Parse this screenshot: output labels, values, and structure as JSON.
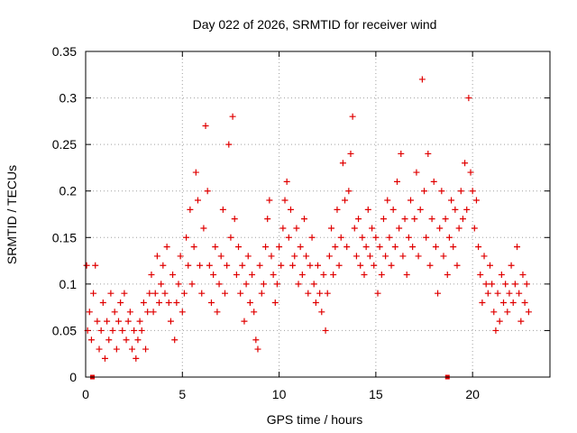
{
  "chart_data": {
    "type": "scatter",
    "title": "Day 022 of 2026, SRMTID for receiver wind",
    "xlabel": "GPS time / hours",
    "ylabel": "SRMTID / TECUs",
    "xlim": [
      0,
      24
    ],
    "ylim": [
      0,
      0.35
    ],
    "xticks": [
      0,
      5,
      10,
      15,
      20
    ],
    "xtick_labels": [
      "0",
      "5",
      "10",
      "15",
      "20"
    ],
    "yticks": [
      0,
      0.05,
      0.1,
      0.15,
      0.2,
      0.25,
      0.3,
      0.35
    ],
    "ytick_labels": [
      "0",
      "0.05",
      "0.1",
      "0.15",
      "0.2",
      "0.25",
      "0.3",
      "0.35"
    ],
    "grid": true,
    "marker": "plus",
    "color": "#e00000",
    "series": [
      {
        "name": "SRMTID",
        "marker": "plus",
        "points": [
          [
            0.05,
            0.12
          ],
          [
            0.1,
            0.05
          ],
          [
            0.2,
            0.07
          ],
          [
            0.3,
            0.04
          ],
          [
            0.4,
            0.09
          ],
          [
            0.5,
            0.12
          ],
          [
            0.6,
            0.06
          ],
          [
            0.7,
            0.03
          ],
          [
            0.8,
            0.05
          ],
          [
            0.9,
            0.08
          ],
          [
            1.0,
            0.02
          ],
          [
            1.1,
            0.06
          ],
          [
            1.2,
            0.04
          ],
          [
            1.3,
            0.09
          ],
          [
            1.4,
            0.05
          ],
          [
            1.5,
            0.07
          ],
          [
            1.6,
            0.03
          ],
          [
            1.7,
            0.06
          ],
          [
            1.8,
            0.08
          ],
          [
            1.9,
            0.05
          ],
          [
            2.0,
            0.09
          ],
          [
            2.1,
            0.04
          ],
          [
            2.2,
            0.06
          ],
          [
            2.3,
            0.07
          ],
          [
            2.4,
            0.03
          ],
          [
            2.5,
            0.05
          ],
          [
            2.6,
            0.02
          ],
          [
            2.7,
            0.04
          ],
          [
            2.8,
            0.06
          ],
          [
            2.9,
            0.05
          ],
          [
            3.0,
            0.08
          ],
          [
            3.1,
            0.03
          ],
          [
            3.2,
            0.07
          ],
          [
            3.3,
            0.09
          ],
          [
            3.4,
            0.11
          ],
          [
            3.5,
            0.07
          ],
          [
            3.6,
            0.09
          ],
          [
            3.7,
            0.13
          ],
          [
            3.8,
            0.08
          ],
          [
            3.9,
            0.1
          ],
          [
            4.0,
            0.12
          ],
          [
            4.1,
            0.09
          ],
          [
            4.2,
            0.14
          ],
          [
            4.3,
            0.08
          ],
          [
            4.4,
            0.06
          ],
          [
            4.5,
            0.11
          ],
          [
            4.6,
            0.04
          ],
          [
            4.7,
            0.08
          ],
          [
            4.8,
            0.1
          ],
          [
            4.9,
            0.13
          ],
          [
            5.0,
            0.07
          ],
          [
            5.1,
            0.09
          ],
          [
            5.2,
            0.15
          ],
          [
            5.3,
            0.12
          ],
          [
            5.4,
            0.18
          ],
          [
            5.5,
            0.1
          ],
          [
            5.6,
            0.14
          ],
          [
            5.7,
            0.22
          ],
          [
            5.8,
            0.19
          ],
          [
            5.9,
            0.12
          ],
          [
            6.0,
            0.09
          ],
          [
            6.1,
            0.16
          ],
          [
            6.2,
            0.27
          ],
          [
            6.3,
            0.2
          ],
          [
            6.4,
            0.12
          ],
          [
            6.5,
            0.08
          ],
          [
            6.6,
            0.11
          ],
          [
            6.7,
            0.14
          ],
          [
            6.8,
            0.07
          ],
          [
            6.9,
            0.1
          ],
          [
            7.0,
            0.13
          ],
          [
            7.1,
            0.18
          ],
          [
            7.2,
            0.09
          ],
          [
            7.3,
            0.12
          ],
          [
            7.4,
            0.25
          ],
          [
            7.5,
            0.15
          ],
          [
            7.6,
            0.28
          ],
          [
            7.7,
            0.17
          ],
          [
            7.8,
            0.11
          ],
          [
            7.9,
            0.14
          ],
          [
            8.0,
            0.09
          ],
          [
            8.1,
            0.12
          ],
          [
            8.2,
            0.06
          ],
          [
            8.3,
            0.1
          ],
          [
            8.4,
            0.13
          ],
          [
            8.5,
            0.08
          ],
          [
            8.6,
            0.11
          ],
          [
            8.7,
            0.07
          ],
          [
            8.8,
            0.04
          ],
          [
            8.9,
            0.03
          ],
          [
            9.0,
            0.12
          ],
          [
            9.1,
            0.09
          ],
          [
            9.2,
            0.1
          ],
          [
            9.3,
            0.14
          ],
          [
            9.4,
            0.17
          ],
          [
            9.5,
            0.19
          ],
          [
            9.6,
            0.13
          ],
          [
            9.7,
            0.11
          ],
          [
            9.8,
            0.08
          ],
          [
            9.9,
            0.1
          ],
          [
            10.0,
            0.14
          ],
          [
            10.1,
            0.12
          ],
          [
            10.2,
            0.16
          ],
          [
            10.3,
            0.19
          ],
          [
            10.4,
            0.21
          ],
          [
            10.5,
            0.15
          ],
          [
            10.6,
            0.18
          ],
          [
            10.7,
            0.12
          ],
          [
            10.8,
            0.13
          ],
          [
            10.9,
            0.16
          ],
          [
            11.0,
            0.1
          ],
          [
            11.1,
            0.14
          ],
          [
            11.2,
            0.11
          ],
          [
            11.3,
            0.17
          ],
          [
            11.4,
            0.13
          ],
          [
            11.5,
            0.09
          ],
          [
            11.6,
            0.12
          ],
          [
            11.7,
            0.15
          ],
          [
            11.8,
            0.1
          ],
          [
            11.9,
            0.08
          ],
          [
            12.0,
            0.12
          ],
          [
            12.1,
            0.09
          ],
          [
            12.2,
            0.07
          ],
          [
            12.3,
            0.11
          ],
          [
            12.4,
            0.05
          ],
          [
            12.5,
            0.09
          ],
          [
            12.6,
            0.13
          ],
          [
            12.7,
            0.16
          ],
          [
            12.8,
            0.11
          ],
          [
            12.9,
            0.14
          ],
          [
            13.0,
            0.18
          ],
          [
            13.1,
            0.12
          ],
          [
            13.2,
            0.15
          ],
          [
            13.3,
            0.23
          ],
          [
            13.4,
            0.19
          ],
          [
            13.5,
            0.14
          ],
          [
            13.6,
            0.2
          ],
          [
            13.7,
            0.24
          ],
          [
            13.8,
            0.28
          ],
          [
            13.9,
            0.16
          ],
          [
            14.0,
            0.13
          ],
          [
            14.1,
            0.17
          ],
          [
            14.2,
            0.12
          ],
          [
            14.3,
            0.15
          ],
          [
            14.4,
            0.11
          ],
          [
            14.5,
            0.14
          ],
          [
            14.6,
            0.18
          ],
          [
            14.7,
            0.13
          ],
          [
            14.8,
            0.16
          ],
          [
            14.9,
            0.12
          ],
          [
            15.0,
            0.15
          ],
          [
            15.1,
            0.09
          ],
          [
            15.2,
            0.14
          ],
          [
            15.3,
            0.11
          ],
          [
            15.4,
            0.17
          ],
          [
            15.5,
            0.13
          ],
          [
            15.6,
            0.19
          ],
          [
            15.7,
            0.15
          ],
          [
            15.8,
            0.12
          ],
          [
            15.9,
            0.18
          ],
          [
            16.0,
            0.14
          ],
          [
            16.1,
            0.21
          ],
          [
            16.2,
            0.16
          ],
          [
            16.3,
            0.24
          ],
          [
            16.4,
            0.13
          ],
          [
            16.5,
            0.17
          ],
          [
            16.6,
            0.11
          ],
          [
            16.7,
            0.15
          ],
          [
            16.8,
            0.19
          ],
          [
            16.9,
            0.14
          ],
          [
            17.0,
            0.17
          ],
          [
            17.1,
            0.22
          ],
          [
            17.2,
            0.13
          ],
          [
            17.3,
            0.18
          ],
          [
            17.4,
            0.32
          ],
          [
            17.5,
            0.2
          ],
          [
            17.6,
            0.15
          ],
          [
            17.7,
            0.24
          ],
          [
            17.8,
            0.12
          ],
          [
            17.9,
            0.17
          ],
          [
            18.0,
            0.21
          ],
          [
            18.1,
            0.14
          ],
          [
            18.2,
            0.09
          ],
          [
            18.3,
            0.16
          ],
          [
            18.4,
            0.2
          ],
          [
            18.5,
            0.13
          ],
          [
            18.6,
            0.17
          ],
          [
            18.7,
            0.11
          ],
          [
            18.8,
            0.15
          ],
          [
            18.9,
            0.19
          ],
          [
            19.0,
            0.14
          ],
          [
            19.1,
            0.18
          ],
          [
            19.2,
            0.12
          ],
          [
            19.3,
            0.16
          ],
          [
            19.4,
            0.2
          ],
          [
            19.5,
            0.17
          ],
          [
            19.6,
            0.23
          ],
          [
            19.7,
            0.18
          ],
          [
            19.8,
            0.3
          ],
          [
            19.9,
            0.22
          ],
          [
            20.0,
            0.2
          ],
          [
            20.1,
            0.16
          ],
          [
            20.2,
            0.19
          ],
          [
            20.3,
            0.14
          ],
          [
            20.4,
            0.11
          ],
          [
            20.5,
            0.08
          ],
          [
            20.6,
            0.13
          ],
          [
            20.7,
            0.1
          ],
          [
            20.8,
            0.09
          ],
          [
            20.9,
            0.12
          ],
          [
            21.0,
            0.1
          ],
          [
            21.1,
            0.07
          ],
          [
            21.2,
            0.05
          ],
          [
            21.3,
            0.09
          ],
          [
            21.4,
            0.06
          ],
          [
            21.5,
            0.11
          ],
          [
            21.6,
            0.08
          ],
          [
            21.7,
            0.1
          ],
          [
            21.8,
            0.07
          ],
          [
            21.9,
            0.09
          ],
          [
            22.0,
            0.12
          ],
          [
            22.1,
            0.08
          ],
          [
            22.2,
            0.1
          ],
          [
            22.3,
            0.14
          ],
          [
            22.4,
            0.09
          ],
          [
            22.5,
            0.06
          ],
          [
            22.6,
            0.11
          ],
          [
            22.7,
            0.08
          ],
          [
            22.8,
            0.1
          ],
          [
            22.9,
            0.07
          ]
        ]
      },
      {
        "name": "zero",
        "marker": "square",
        "points": [
          [
            0.35,
            0.0
          ],
          [
            18.7,
            0.0
          ]
        ]
      }
    ]
  }
}
